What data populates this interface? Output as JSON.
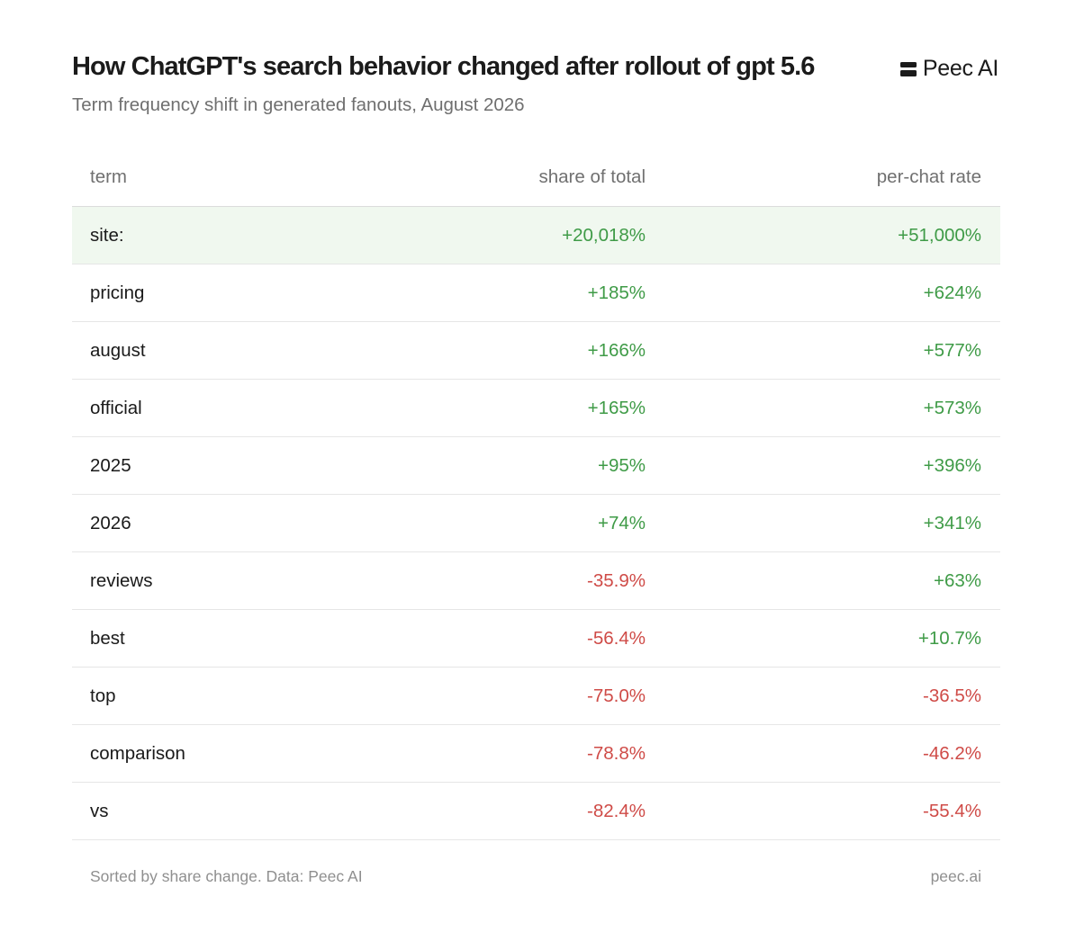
{
  "header": {
    "title": "How ChatGPT's search behavior changed after rollout of gpt 5.6",
    "subtitle": "Term frequency shift in generated fanouts, August 2026",
    "brand": "Peec AI"
  },
  "chart_data": {
    "type": "table",
    "title": "How ChatGPT's search behavior changed after rollout of gpt 5.6",
    "subtitle": "Term frequency shift in generated fanouts, August 2026",
    "columns": [
      "term",
      "share of total",
      "per-chat rate"
    ],
    "rows": [
      {
        "term": "site:",
        "share": "+20,018%",
        "rate": "+51,000%",
        "highlight": true
      },
      {
        "term": "pricing",
        "share": "+185%",
        "rate": "+624%"
      },
      {
        "term": "august",
        "share": "+166%",
        "rate": "+577%"
      },
      {
        "term": "official",
        "share": "+165%",
        "rate": "+573%"
      },
      {
        "term": "2025",
        "share": "+95%",
        "rate": "+396%"
      },
      {
        "term": "2026",
        "share": "+74%",
        "rate": "+341%"
      },
      {
        "term": "reviews",
        "share": "-35.9%",
        "rate": "+63%"
      },
      {
        "term": "best",
        "share": "-56.4%",
        "rate": "+10.7%"
      },
      {
        "term": "top",
        "share": "-75.0%",
        "rate": "-36.5%"
      },
      {
        "term": "comparison",
        "share": "-78.8%",
        "rate": "-46.2%"
      },
      {
        "term": "vs",
        "share": "-82.4%",
        "rate": "-55.4%"
      }
    ],
    "colors": {
      "positive": "#3f9b47",
      "negative": "#cf4b47",
      "highlight_row": "#f0f8ef"
    }
  },
  "footer": {
    "note": "Sorted by share change. Data: Peec AI",
    "link": "peec.ai"
  }
}
